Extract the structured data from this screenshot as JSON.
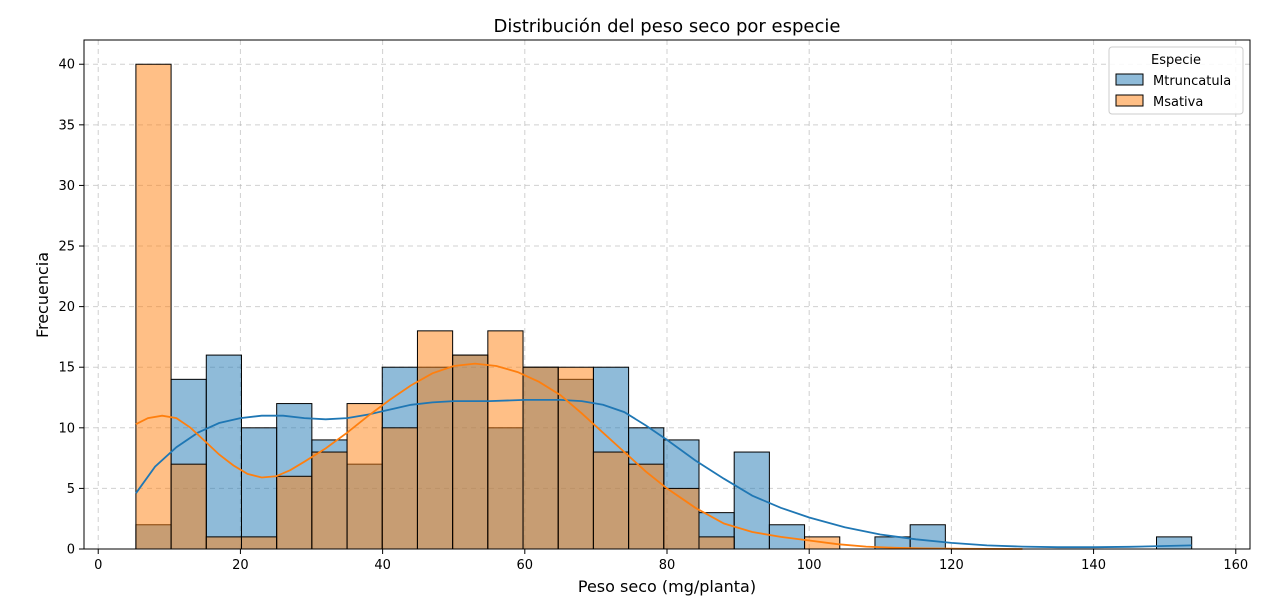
{
  "chart_data": {
    "type": "histogram",
    "title": "Distribución del peso seco por especie",
    "xlabel": "Peso seco (mg/planta)",
    "ylabel": "Frecuencia",
    "xlim": [
      -2,
      162
    ],
    "ylim": [
      0,
      42
    ],
    "xticks": [
      0,
      20,
      40,
      60,
      80,
      100,
      120,
      140,
      160
    ],
    "yticks": [
      0,
      5,
      10,
      15,
      20,
      25,
      30,
      35,
      40
    ],
    "grid": true,
    "legend": {
      "title": "Especie",
      "position": "top-right"
    },
    "bin_start": 5.3,
    "bin_width": 4.95,
    "series": [
      {
        "name": "Mtruncatula",
        "color": "#1f77b4",
        "counts": [
          2,
          14,
          16,
          10,
          12,
          9,
          7,
          15,
          15,
          16,
          10,
          15,
          14,
          15,
          10,
          9,
          3,
          8,
          2,
          0,
          0,
          1,
          2,
          0,
          0,
          0,
          0,
          0,
          0,
          1
        ],
        "kde": [
          [
            5.3,
            4.6
          ],
          [
            8,
            6.8
          ],
          [
            11,
            8.4
          ],
          [
            14,
            9.6
          ],
          [
            17,
            10.4
          ],
          [
            20,
            10.8
          ],
          [
            23,
            11.0
          ],
          [
            26,
            11.0
          ],
          [
            29,
            10.8
          ],
          [
            32,
            10.7
          ],
          [
            35,
            10.8
          ],
          [
            38,
            11.1
          ],
          [
            41,
            11.5
          ],
          [
            44,
            11.9
          ],
          [
            47,
            12.1
          ],
          [
            50,
            12.2
          ],
          [
            55,
            12.2
          ],
          [
            60,
            12.3
          ],
          [
            65,
            12.3
          ],
          [
            68,
            12.2
          ],
          [
            71,
            11.9
          ],
          [
            74,
            11.3
          ],
          [
            77,
            10.2
          ],
          [
            80,
            9.0
          ],
          [
            84,
            7.3
          ],
          [
            88,
            5.8
          ],
          [
            92,
            4.4
          ],
          [
            96,
            3.4
          ],
          [
            100,
            2.6
          ],
          [
            105,
            1.8
          ],
          [
            110,
            1.2
          ],
          [
            115,
            0.8
          ],
          [
            120,
            0.5
          ],
          [
            125,
            0.3
          ],
          [
            130,
            0.2
          ],
          [
            135,
            0.15
          ],
          [
            140,
            0.15
          ],
          [
            145,
            0.18
          ],
          [
            150,
            0.25
          ],
          [
            153.8,
            0.3
          ]
        ]
      },
      {
        "name": "Msativa",
        "color": "#ff7f0e",
        "counts": [
          40,
          7,
          1,
          1,
          6,
          8,
          12,
          10,
          18,
          16,
          18,
          15,
          15,
          8,
          7,
          5,
          1,
          0,
          0,
          1,
          0,
          0,
          0,
          0,
          0,
          0,
          0,
          0,
          0,
          0
        ],
        "kde": [
          [
            5.3,
            10.3
          ],
          [
            7,
            10.8
          ],
          [
            9,
            11.0
          ],
          [
            11,
            10.8
          ],
          [
            13,
            10.0
          ],
          [
            15,
            8.9
          ],
          [
            17,
            7.8
          ],
          [
            19,
            6.9
          ],
          [
            21,
            6.2
          ],
          [
            23,
            5.9
          ],
          [
            25,
            6.0
          ],
          [
            27,
            6.5
          ],
          [
            29,
            7.2
          ],
          [
            32,
            8.3
          ],
          [
            35,
            9.6
          ],
          [
            38,
            11.0
          ],
          [
            41,
            12.3
          ],
          [
            44,
            13.5
          ],
          [
            47,
            14.5
          ],
          [
            50,
            15.1
          ],
          [
            53,
            15.3
          ],
          [
            56,
            15.1
          ],
          [
            59,
            14.6
          ],
          [
            62,
            13.8
          ],
          [
            65,
            12.7
          ],
          [
            68,
            11.2
          ],
          [
            71,
            9.6
          ],
          [
            74,
            8.0
          ],
          [
            77,
            6.4
          ],
          [
            80,
            5.0
          ],
          [
            84,
            3.4
          ],
          [
            88,
            2.1
          ],
          [
            92,
            1.4
          ],
          [
            96,
            1.0
          ],
          [
            100,
            0.7
          ],
          [
            104,
            0.4
          ],
          [
            108,
            0.2
          ],
          [
            112,
            0.1
          ],
          [
            116,
            0.05
          ],
          [
            122,
            0.02
          ],
          [
            130,
            0.0
          ]
        ]
      }
    ]
  }
}
